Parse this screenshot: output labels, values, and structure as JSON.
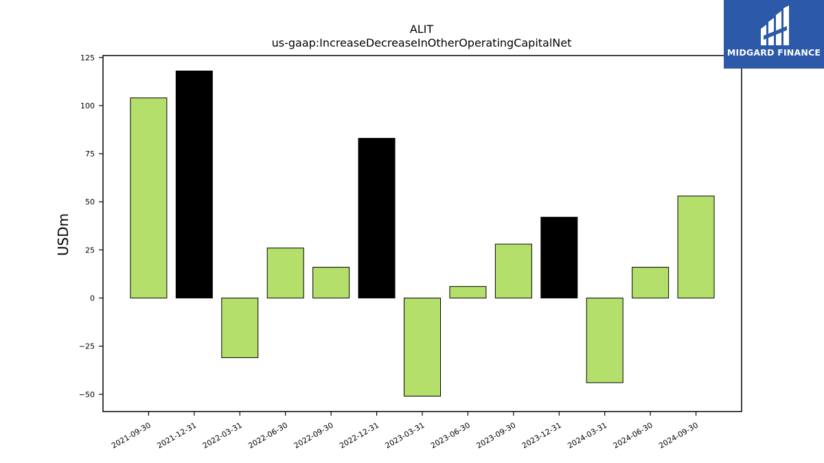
{
  "logo": {
    "text": "MIDGARD FINANCE"
  },
  "chart_data": {
    "type": "bar",
    "title": "ALIT",
    "subtitle": "us-gaap:IncreaseDecreaseInOtherOperatingCapitalNet",
    "xlabel": "",
    "ylabel": "USDm",
    "ylim": [
      -59,
      126
    ],
    "yticks": [
      125,
      100,
      75,
      50,
      25,
      0,
      -25,
      -50
    ],
    "grid": false,
    "categories": [
      "2021-09-30",
      "2021-12-31",
      "2022-03-31",
      "2022-06-30",
      "2022-09-30",
      "2022-12-31",
      "2023-03-31",
      "2023-06-30",
      "2023-09-30",
      "2023-12-31",
      "2024-03-31",
      "2024-06-30",
      "2024-09-30"
    ],
    "values": [
      104,
      118,
      -31,
      26,
      16,
      83,
      -51,
      6,
      28,
      42,
      -44,
      16,
      53
    ],
    "bar_colors": [
      "#b3df6a",
      "#000000",
      "#b3df6a",
      "#b3df6a",
      "#b3df6a",
      "#000000",
      "#b3df6a",
      "#b3df6a",
      "#b3df6a",
      "#000000",
      "#b3df6a",
      "#b3df6a",
      "#b3df6a"
    ]
  }
}
